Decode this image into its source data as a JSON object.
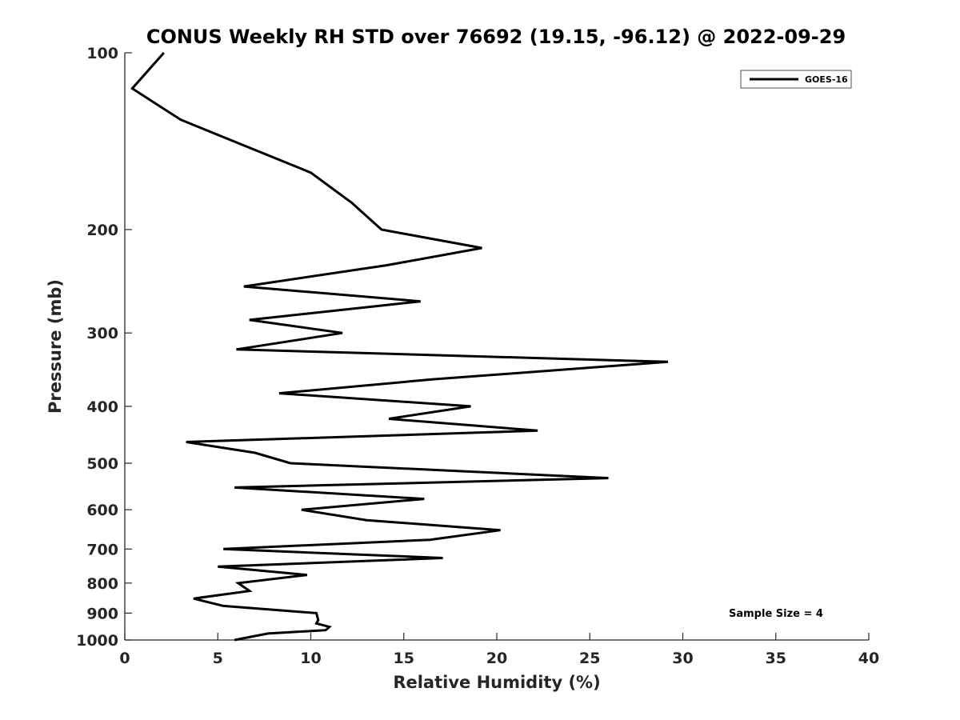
{
  "chart_data": {
    "type": "line",
    "title": "CONUS Weekly RH STD over 76692 (19.15, -96.12) @ 2022-09-29",
    "xlabel": "Relative Humidity (%)",
    "ylabel": "Pressure (mb)",
    "xlim": [
      0,
      40
    ],
    "ylim": [
      100,
      1000
    ],
    "y_scale": "log",
    "y_reversed": true,
    "x_ticks": [
      "0",
      "5",
      "10",
      "15",
      "20",
      "25",
      "30",
      "35",
      "40"
    ],
    "y_ticks": [
      "100",
      "200",
      "300",
      "400",
      "500",
      "600",
      "700",
      "800",
      "900",
      "1000"
    ],
    "grid": false,
    "legend_position": "top-right",
    "series": [
      {
        "name": "GOES-16",
        "color": "#000000",
        "points": [
          [
            2.1,
            100
          ],
          [
            0.4,
            115
          ],
          [
            3.0,
            130
          ],
          [
            10.0,
            160
          ],
          [
            12.2,
            180
          ],
          [
            13.8,
            200
          ],
          [
            19.2,
            215
          ],
          [
            14.1,
            230
          ],
          [
            6.4,
            250
          ],
          [
            15.9,
            265
          ],
          [
            6.7,
            285
          ],
          [
            11.7,
            300
          ],
          [
            6.0,
            320
          ],
          [
            29.2,
            336
          ],
          [
            16.5,
            360
          ],
          [
            8.3,
            380
          ],
          [
            18.6,
            400
          ],
          [
            14.2,
            420
          ],
          [
            22.2,
            440
          ],
          [
            3.3,
            460
          ],
          [
            7.0,
            480
          ],
          [
            8.9,
            500
          ],
          [
            26.0,
            530
          ],
          [
            5.9,
            550
          ],
          [
            16.1,
            575
          ],
          [
            9.5,
            600
          ],
          [
            13.0,
            625
          ],
          [
            20.2,
            650
          ],
          [
            16.4,
            675
          ],
          [
            5.3,
            700
          ],
          [
            17.1,
            725
          ],
          [
            5.0,
            750
          ],
          [
            9.8,
            775
          ],
          [
            6.1,
            800
          ],
          [
            6.7,
            825
          ],
          [
            3.7,
            850
          ],
          [
            5.3,
            875
          ],
          [
            10.3,
            900
          ],
          [
            10.4,
            925
          ],
          [
            10.3,
            937
          ],
          [
            11.0,
            950
          ],
          [
            10.8,
            962
          ],
          [
            7.7,
            975
          ],
          [
            5.9,
            1000
          ]
        ]
      }
    ],
    "annotation": "Sample Size = 4"
  }
}
